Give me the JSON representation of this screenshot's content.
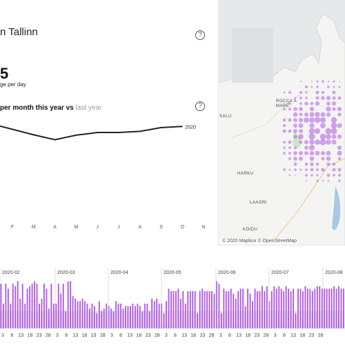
{
  "header": {
    "title": "n Tallinn",
    "help_icon": "help-circle-icon"
  },
  "kpi": {
    "value": "5",
    "label": "ge per day"
  },
  "line_chart": {
    "title_main": "per month this year vs ",
    "title_muted": "last year",
    "help_icon": "help-circle-icon",
    "series_label": "2020"
  },
  "map": {
    "attribution": "© 2020 Mapbox © OpenStreetMap",
    "places": [
      "SALU",
      "HARKU",
      "LAAGRI",
      "KOIDU",
      "ROCCA A MARE"
    ]
  },
  "colors": {
    "accent": "#b05be6",
    "line": "#222222",
    "muted": "#9a9a9a",
    "bar_grey": "#d3d3d3"
  },
  "chart_data": [
    {
      "type": "line",
      "categories": [
        "F",
        "M",
        "A",
        "M",
        "J",
        "J",
        "A",
        "S",
        "O",
        "N"
      ],
      "series": [
        {
          "name": "2020",
          "values": [
            null,
            0.63,
            0.5,
            0.62,
            0.69,
            0.69,
            0.72,
            0.82,
            0.85,
            null
          ],
          "first_value": 0.86
        }
      ]
    },
    {
      "type": "bar",
      "x_tick_labels": [
        "3",
        "8",
        "13",
        "18",
        "23",
        "28",
        "3",
        "8",
        "13",
        "18",
        "23",
        "28",
        "3",
        "8",
        "13",
        "18",
        "23",
        "28",
        "3",
        "8",
        "13",
        "18",
        "23",
        "28",
        "3",
        "8",
        "13",
        "18",
        "23",
        "28",
        "3",
        "8",
        "13",
        "18",
        "23",
        "28"
      ],
      "month_labels": [
        "2020-02",
        "2020-03",
        "2020-04",
        "2020-05",
        "2020-06",
        "2020-07",
        "2020-08"
      ],
      "values": [
        0.9,
        0.5,
        0.9,
        0.8,
        0.5,
        0.9,
        0.85,
        0.95,
        0.6,
        0.9,
        0.5,
        0.8,
        0.85,
        0.9,
        0.95,
        0.9,
        0.5,
        0.6,
        0.9,
        0.8,
        0.4,
        0.9,
        0.5,
        0.5,
        0.9,
        0.7,
        0.9,
        0.35,
        0.95,
        0.95,
        0.65,
        0.6,
        0.55,
        0.55,
        0.6,
        0.55,
        0.5,
        0.4,
        0.5,
        0.45,
        0.3,
        0.55,
        0.35,
        0.4,
        0.5,
        0.45,
        0.4,
        0.35,
        0.55,
        0.5,
        0.5,
        0.4,
        0.45,
        0.45,
        0.45,
        0.5,
        0.45,
        0.5,
        0.45,
        0.35,
        0.5,
        0.5,
        0.35,
        0.6,
        0.55,
        0.6,
        0.5,
        0.5,
        0.3,
        0.55,
        0.8,
        0.75,
        0.75,
        0.75,
        0.8,
        0.6,
        0.75,
        0.5,
        0.75,
        0.75,
        0.75,
        0.75,
        0.3,
        0.75,
        0.8,
        0.75,
        0.75,
        0.75,
        0.75,
        0.7,
        0.95,
        0.9,
        0.3,
        0.8,
        0.75,
        0.75,
        0.8,
        0.7,
        0.6,
        0.75,
        0.8,
        0.8,
        0.45,
        0.8,
        0.7,
        0.55,
        0.8,
        0.75,
        0.75,
        0.85,
        0.75,
        0.85,
        0.55,
        0.75,
        0.85,
        0.8,
        0.85,
        0.8,
        0.75,
        0.85,
        0.8,
        0.75,
        0.8,
        0.3,
        0.8,
        0.8,
        0.75,
        0.85,
        0.8,
        0.8,
        0.75,
        0.8,
        0.85,
        0.85,
        0.8,
        0.8,
        0.8,
        0.8,
        0.8,
        0.85,
        0.8,
        0.85,
        0.8,
        0.8
      ]
    }
  ]
}
